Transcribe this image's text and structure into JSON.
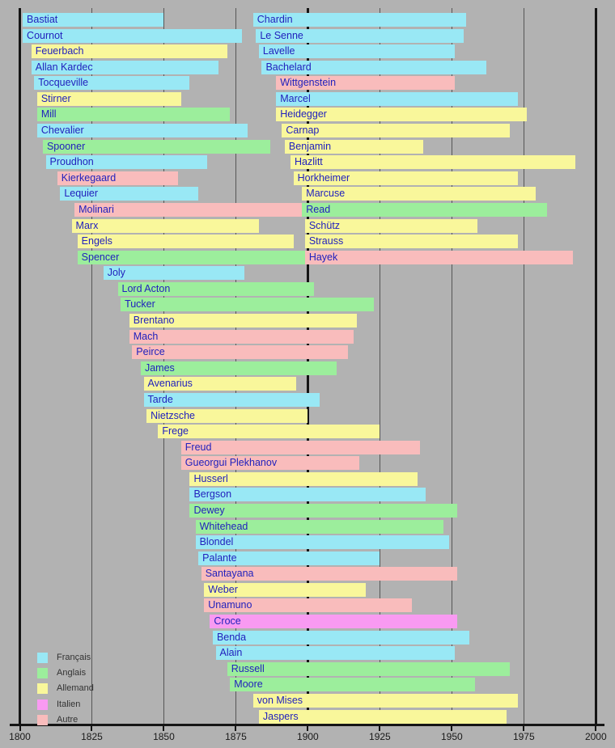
{
  "chart_data": {
    "type": "bar",
    "variant": "horizontal-timeline-gantt",
    "title": "",
    "xlabel": "",
    "ylabel": "",
    "axis": {
      "min": 1800,
      "max": 2000,
      "tick_step": 25,
      "ticks": [
        1800,
        1825,
        1850,
        1875,
        1900,
        1925,
        1950,
        1975,
        2000
      ],
      "tick_labels": [
        "1800",
        "1825",
        "1850",
        "1875",
        "1900",
        "1925",
        "1950",
        "1975",
        "2000"
      ],
      "major_gridline_years": [
        1800,
        1900,
        2000
      ],
      "minor_gridline_years": [
        1825,
        1850,
        1875,
        1925,
        1950,
        1975
      ],
      "grid": "on"
    },
    "colors": {
      "background": "#b2b2b2",
      "bar_label_text": "#2121bd",
      "axis_text": "#1a1a1a",
      "minor_gridline": "#565656",
      "major_gridline": "#151515"
    },
    "legend": [
      {
        "label": "Français",
        "color": "#99e8f5"
      },
      {
        "label": "Anglais",
        "color": "#9cee9c"
      },
      {
        "label": "Allemand",
        "color": "#f9f79b"
      },
      {
        "label": "Italien",
        "color": "#f99af2"
      },
      {
        "label": "Autre",
        "color": "#f9bcbc"
      }
    ],
    "legend_position": "bottom-left",
    "people": [
      {
        "name": "Bastiat",
        "row": 0,
        "start": 1801,
        "end": 1850,
        "group": "Français"
      },
      {
        "name": "Cournot",
        "row": 1,
        "start": 1801,
        "end": 1877,
        "group": "Français"
      },
      {
        "name": "Feuerbach",
        "row": 2,
        "start": 1804,
        "end": 1872,
        "group": "Allemand"
      },
      {
        "name": "Allan Kardec",
        "row": 3,
        "start": 1804,
        "end": 1869,
        "group": "Français"
      },
      {
        "name": "Tocqueville",
        "row": 4,
        "start": 1805,
        "end": 1859,
        "group": "Français"
      },
      {
        "name": "Stirner",
        "row": 5,
        "start": 1806,
        "end": 1856,
        "group": "Allemand"
      },
      {
        "name": "Mill",
        "row": 6,
        "start": 1806,
        "end": 1873,
        "group": "Anglais"
      },
      {
        "name": "Chevalier",
        "row": 7,
        "start": 1806,
        "end": 1879,
        "group": "Français"
      },
      {
        "name": "Spooner",
        "row": 8,
        "start": 1808,
        "end": 1887,
        "group": "Anglais"
      },
      {
        "name": "Proudhon",
        "row": 9,
        "start": 1809,
        "end": 1865,
        "group": "Français"
      },
      {
        "name": "Kierkegaard",
        "row": 10,
        "start": 1813,
        "end": 1855,
        "group": "Autre"
      },
      {
        "name": "Lequier",
        "row": 11,
        "start": 1814,
        "end": 1862,
        "group": "Français"
      },
      {
        "name": "Molinari",
        "row": 12,
        "start": 1819,
        "end": 1912,
        "group": "Autre"
      },
      {
        "name": "Marx",
        "row": 13,
        "start": 1818,
        "end": 1883,
        "group": "Allemand"
      },
      {
        "name": "Engels",
        "row": 14,
        "start": 1820,
        "end": 1895,
        "group": "Allemand"
      },
      {
        "name": "Spencer",
        "row": 15,
        "start": 1820,
        "end": 1903,
        "group": "Anglais"
      },
      {
        "name": "Joly",
        "row": 16,
        "start": 1829,
        "end": 1878,
        "group": "Français"
      },
      {
        "name": "Lord Acton",
        "row": 17,
        "start": 1834,
        "end": 1902,
        "group": "Anglais"
      },
      {
        "name": "Tucker",
        "row": 18,
        "start": 1835,
        "end": 1923,
        "group": "Anglais"
      },
      {
        "name": "Brentano",
        "row": 19,
        "start": 1838,
        "end": 1917,
        "group": "Allemand"
      },
      {
        "name": "Mach",
        "row": 20,
        "start": 1838,
        "end": 1916,
        "group": "Autre"
      },
      {
        "name": "Peirce",
        "row": 21,
        "start": 1839,
        "end": 1914,
        "group": "Autre"
      },
      {
        "name": "James",
        "row": 22,
        "start": 1842,
        "end": 1910,
        "group": "Anglais"
      },
      {
        "name": "Avenarius",
        "row": 23,
        "start": 1843,
        "end": 1896,
        "group": "Allemand"
      },
      {
        "name": "Tarde",
        "row": 24,
        "start": 1843,
        "end": 1904,
        "group": "Français"
      },
      {
        "name": "Nietzsche",
        "row": 25,
        "start": 1844,
        "end": 1900,
        "group": "Allemand"
      },
      {
        "name": "Frege",
        "row": 26,
        "start": 1848,
        "end": 1925,
        "group": "Allemand"
      },
      {
        "name": "Freud",
        "row": 27,
        "start": 1856,
        "end": 1939,
        "group": "Autre"
      },
      {
        "name": "Gueorgui Plekhanov",
        "row": 28,
        "start": 1856,
        "end": 1918,
        "group": "Autre"
      },
      {
        "name": "Husserl",
        "row": 29,
        "start": 1859,
        "end": 1938,
        "group": "Allemand"
      },
      {
        "name": "Bergson",
        "row": 30,
        "start": 1859,
        "end": 1941,
        "group": "Français"
      },
      {
        "name": "Dewey",
        "row": 31,
        "start": 1859,
        "end": 1952,
        "group": "Anglais"
      },
      {
        "name": "Whitehead",
        "row": 32,
        "start": 1861,
        "end": 1947,
        "group": "Anglais"
      },
      {
        "name": "Blondel",
        "row": 33,
        "start": 1861,
        "end": 1949,
        "group": "Français"
      },
      {
        "name": "Palante",
        "row": 34,
        "start": 1862,
        "end": 1925,
        "group": "Français"
      },
      {
        "name": "Santayana",
        "row": 35,
        "start": 1863,
        "end": 1952,
        "group": "Autre"
      },
      {
        "name": "Weber",
        "row": 36,
        "start": 1864,
        "end": 1920,
        "group": "Allemand"
      },
      {
        "name": "Unamuno",
        "row": 37,
        "start": 1864,
        "end": 1936,
        "group": "Autre"
      },
      {
        "name": "Croce",
        "row": 38,
        "start": 1866,
        "end": 1952,
        "group": "Italien"
      },
      {
        "name": "Benda",
        "row": 39,
        "start": 1867,
        "end": 1956,
        "group": "Français"
      },
      {
        "name": "Alain",
        "row": 40,
        "start": 1868,
        "end": 1951,
        "group": "Français"
      },
      {
        "name": "Russell",
        "row": 41,
        "start": 1872,
        "end": 1970,
        "group": "Anglais"
      },
      {
        "name": "Moore",
        "row": 42,
        "start": 1873,
        "end": 1958,
        "group": "Anglais"
      },
      {
        "name": "von Mises",
        "row": 43,
        "start": 1881,
        "end": 1973,
        "group": "Allemand"
      },
      {
        "name": "Jaspers",
        "row": 44,
        "start": 1883,
        "end": 1969,
        "group": "Allemand"
      },
      {
        "name": "Chardin",
        "row": 0,
        "start": 1881,
        "end": 1955,
        "group": "Français"
      },
      {
        "name": "Le Senne",
        "row": 1,
        "start": 1882,
        "end": 1954,
        "group": "Français"
      },
      {
        "name": "Lavelle",
        "row": 2,
        "start": 1883,
        "end": 1951,
        "group": "Français"
      },
      {
        "name": "Bachelard",
        "row": 3,
        "start": 1884,
        "end": 1962,
        "group": "Français"
      },
      {
        "name": "Wittgenstein",
        "row": 4,
        "start": 1889,
        "end": 1951,
        "group": "Autre"
      },
      {
        "name": "Marcel",
        "row": 5,
        "start": 1889,
        "end": 1973,
        "group": "Français"
      },
      {
        "name": "Heidegger",
        "row": 6,
        "start": 1889,
        "end": 1976,
        "group": "Allemand"
      },
      {
        "name": "Carnap",
        "row": 7,
        "start": 1891,
        "end": 1970,
        "group": "Allemand"
      },
      {
        "name": "Benjamin",
        "row": 8,
        "start": 1892,
        "end": 1940,
        "group": "Allemand"
      },
      {
        "name": "Hazlitt",
        "row": 9,
        "start": 1894,
        "end": 1993,
        "group": "Allemand"
      },
      {
        "name": "Horkheimer",
        "row": 10,
        "start": 1895,
        "end": 1973,
        "group": "Allemand"
      },
      {
        "name": "Marcuse",
        "row": 11,
        "start": 1898,
        "end": 1979,
        "group": "Allemand"
      },
      {
        "name": "Read",
        "row": 12,
        "start": 1898,
        "end": 1983,
        "group": "Anglais"
      },
      {
        "name": "Schütz",
        "row": 13,
        "start": 1899,
        "end": 1959,
        "group": "Allemand"
      },
      {
        "name": "Strauss",
        "row": 14,
        "start": 1899,
        "end": 1973,
        "group": "Allemand"
      },
      {
        "name": "Hayek",
        "row": 15,
        "start": 1899,
        "end": 1992,
        "group": "Autre"
      }
    ]
  }
}
